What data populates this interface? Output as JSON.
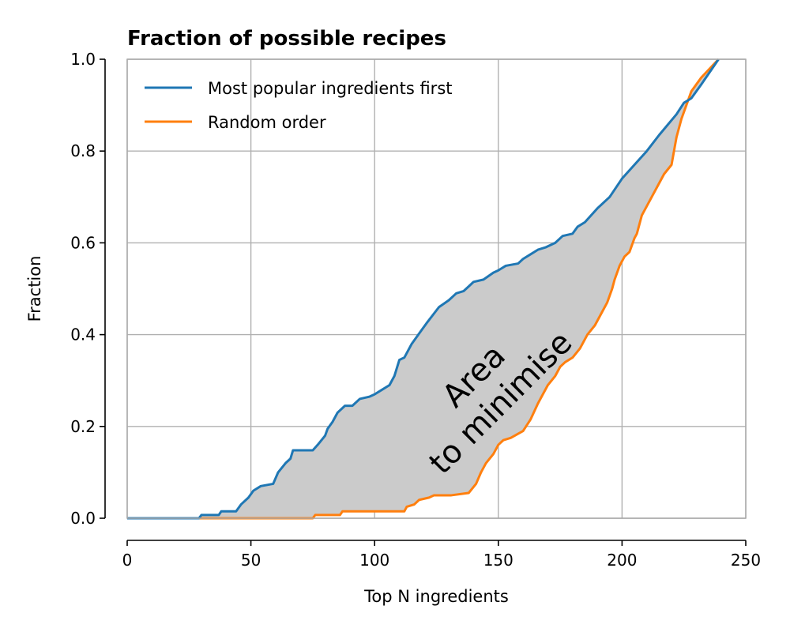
{
  "chart_data": {
    "type": "line",
    "title": "Fraction of possible recipes",
    "xlabel": "Top N ingredients",
    "ylabel": "Fraction",
    "xlim": [
      0,
      250
    ],
    "ylim": [
      0,
      1
    ],
    "xticks": [
      "0",
      "50",
      "100",
      "150",
      "200",
      "250"
    ],
    "yticks": [
      "0.0",
      "0.2",
      "0.4",
      "0.6",
      "0.8",
      "1.0"
    ],
    "grid": true,
    "legend_position": "top-left",
    "annotation": [
      "Area",
      "to minimise"
    ],
    "fill_between": true,
    "series": [
      {
        "name": "Most popular ingredients first",
        "color": "#1f77b4",
        "x": [
          0,
          29,
          30,
          37,
          38,
          44,
          46,
          49,
          51,
          54,
          59,
          61,
          64,
          66,
          67,
          75,
          77,
          80,
          81,
          83,
          85,
          88,
          91,
          94,
          98,
          100,
          103,
          106,
          108,
          110,
          112,
          115,
          119,
          121,
          126,
          130,
          133,
          136,
          138,
          140,
          144,
          148,
          150,
          153,
          158,
          160,
          163,
          166,
          169,
          173,
          176,
          180,
          182,
          185,
          190,
          195,
          200,
          205,
          210,
          215,
          222,
          225,
          228,
          232,
          239
        ],
        "values": [
          0.0,
          0.0,
          0.007,
          0.007,
          0.015,
          0.015,
          0.03,
          0.045,
          0.06,
          0.07,
          0.075,
          0.1,
          0.12,
          0.13,
          0.148,
          0.148,
          0.16,
          0.18,
          0.195,
          0.21,
          0.23,
          0.245,
          0.245,
          0.26,
          0.265,
          0.27,
          0.28,
          0.29,
          0.31,
          0.345,
          0.35,
          0.38,
          0.41,
          0.425,
          0.46,
          0.475,
          0.49,
          0.495,
          0.505,
          0.515,
          0.52,
          0.535,
          0.54,
          0.55,
          0.555,
          0.565,
          0.575,
          0.585,
          0.59,
          0.6,
          0.615,
          0.62,
          0.635,
          0.645,
          0.675,
          0.7,
          0.74,
          0.77,
          0.8,
          0.835,
          0.88,
          0.905,
          0.915,
          0.945,
          1.0
        ]
      },
      {
        "name": "Random order",
        "color": "#ff7f0e",
        "x": [
          0,
          75,
          76,
          86,
          87,
          112,
          113,
          116,
          118,
          122,
          124,
          131,
          138,
          141,
          143,
          145,
          148,
          150,
          152,
          155,
          160,
          163,
          166,
          170,
          173,
          175,
          177,
          180,
          183,
          186,
          189,
          191,
          194,
          196,
          197,
          199,
          201,
          203,
          205,
          206,
          208,
          210,
          212,
          215,
          217,
          220,
          222,
          224,
          226,
          228,
          232,
          239
        ],
        "values": [
          0.0,
          0.0,
          0.007,
          0.007,
          0.015,
          0.015,
          0.025,
          0.03,
          0.04,
          0.045,
          0.05,
          0.05,
          0.055,
          0.075,
          0.1,
          0.12,
          0.14,
          0.16,
          0.17,
          0.175,
          0.19,
          0.215,
          0.25,
          0.29,
          0.31,
          0.33,
          0.34,
          0.35,
          0.37,
          0.4,
          0.42,
          0.44,
          0.47,
          0.5,
          0.52,
          0.55,
          0.57,
          0.58,
          0.61,
          0.62,
          0.66,
          0.68,
          0.7,
          0.73,
          0.75,
          0.77,
          0.83,
          0.87,
          0.9,
          0.93,
          0.96,
          1.0
        ]
      }
    ]
  }
}
